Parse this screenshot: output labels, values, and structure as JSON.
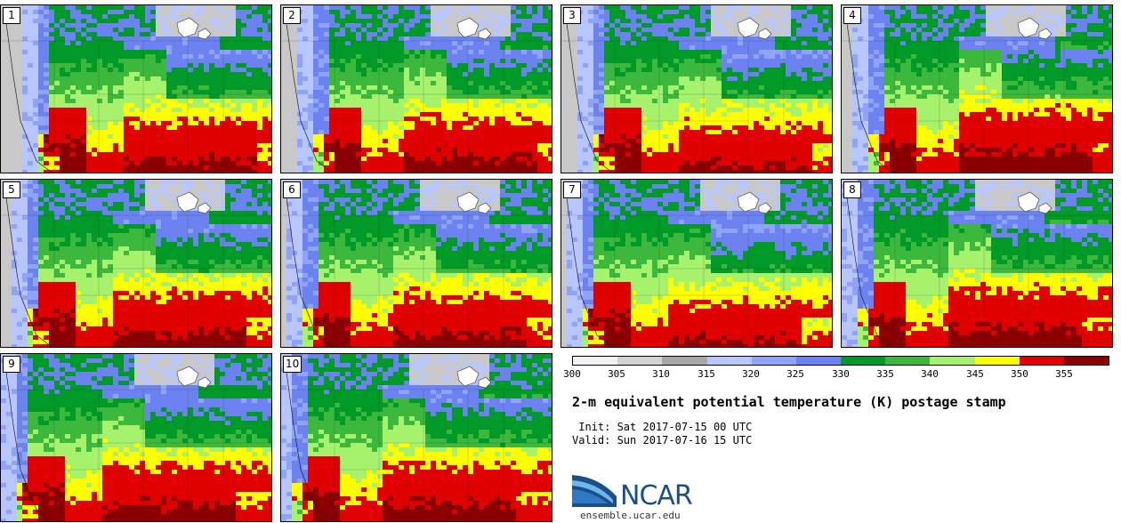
{
  "members": [
    {
      "num": "1",
      "variant": 0.3
    },
    {
      "num": "2",
      "variant": 0.45
    },
    {
      "num": "3",
      "variant": 0.1
    },
    {
      "num": "4",
      "variant": 0.8
    },
    {
      "num": "5",
      "variant": 0.4
    },
    {
      "num": "6",
      "variant": 0.35
    },
    {
      "num": "7",
      "variant": 0.0
    },
    {
      "num": "8",
      "variant": 0.6
    },
    {
      "num": "9",
      "variant": 0.5
    },
    {
      "num": "10",
      "variant": 0.55
    }
  ],
  "colorbar": {
    "ticks": [
      "300",
      "305",
      "310",
      "315",
      "320",
      "325",
      "330",
      "335",
      "340",
      "345",
      "350",
      "355"
    ],
    "colors": [
      "#f2f2f2",
      "#d2d2d2",
      "#a8a8a8",
      "#b8c6ff",
      "#8fa4f8",
      "#6b82f0",
      "#009a28",
      "#3cb83c",
      "#a6f26c",
      "#ffff00",
      "#e00000",
      "#8a0000"
    ]
  },
  "title": "2-m equivalent potential temperature (K) postage stamp",
  "init": " Init: Sat 2017-07-15 00 UTC",
  "valid": "Valid: Sun 2017-07-16 15 UTC",
  "logo": {
    "name": "NCAR",
    "url": "ensemble.ucar.edu"
  }
}
